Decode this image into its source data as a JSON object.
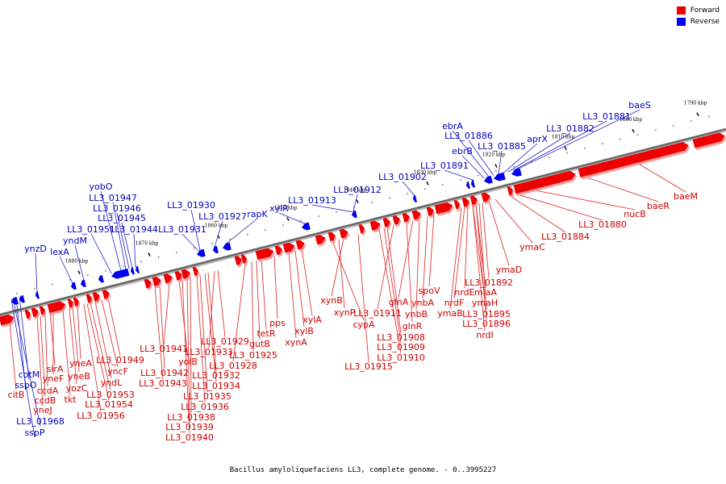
{
  "legend": {
    "items": [
      {
        "label": "Forward",
        "color": "#ee0000"
      },
      {
        "label": "Reverse",
        "color": "#0000ee"
      }
    ]
  },
  "colors": {
    "forward": "#ee0000",
    "reverse": "#0000ee",
    "axis": "#666666"
  },
  "caption": "Bacillus amyloliquefaciens LL3, complete genome. - 0..3995227",
  "scale": {
    "ticks": [
      "1790 kbp",
      "1800 kbp",
      "1810 kbp",
      "1820 kbp",
      "1830 kbp",
      "1840 kbp",
      "1850 kbp",
      "1860 kbp",
      "1870 kbp",
      "1880 kbp"
    ]
  },
  "genes": {
    "reverse": [
      "baeS",
      "LL3_01881",
      "LL3_01882",
      "aprX",
      "LL3_01885",
      "LL3_01886",
      "ebrA",
      "ebrB",
      "LL3_01891",
      "LL3_01902",
      "LL3_01912",
      "LL3_01913",
      "xylR",
      "rapK",
      "LL3_01927",
      "LL3_01930",
      "LL3_01931",
      "yobO",
      "LL3_01947",
      "LL3_01946",
      "LL3_01945",
      "LL3_01944",
      "LL3_01951",
      "yndM",
      "lexA",
      "ynzD",
      "cotM",
      "sspO",
      "LL3_01968",
      "sspP"
    ],
    "forward": [
      "baeM",
      "baeR",
      "nucB",
      "LL3_01880",
      "LL3_01884",
      "ymaC",
      "ymaD",
      "LL3_01892",
      "miaA",
      "ymaH",
      "nrdE",
      "nrdF",
      "ymaB",
      "LL3_01895",
      "LL3_01896",
      "nrdI",
      "spoV",
      "ynbA",
      "ynbB",
      "glnA",
      "glnR",
      "LL3_01911",
      "LL3_01908",
      "LL3_01909",
      "LL3_01910",
      "LL3_01915",
      "xynB",
      "xynP",
      "cypA",
      "xylA",
      "xylB",
      "xynA",
      "pps",
      "tetR",
      "gutB",
      "LL3_01925",
      "LL3_01928",
      "LL3_01929",
      "LL3_01933",
      "LL3_01932",
      "LL3_01934",
      "LL3_01935",
      "LL3_01936",
      "LL3_01938",
      "LL3_01939",
      "LL3_01940",
      "yolB",
      "LL3_01941",
      "LL3_01942",
      "LL3_01943",
      "LL3_01949",
      "yncF",
      "yndL",
      "LL3_01953",
      "LL3_01954",
      "LL3_01956",
      "yneA",
      "yneB",
      "yneF",
      "sirA",
      "yozC",
      "tkt",
      "ccdA",
      "ccdB",
      "yneJ",
      "citB"
    ]
  }
}
